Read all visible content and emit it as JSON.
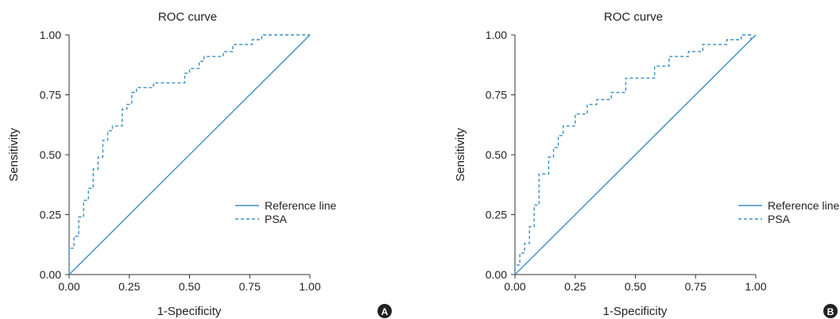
{
  "chart_data": [
    {
      "type": "line",
      "panel_label": "A",
      "title": "ROC curve",
      "xlabel": "1-Specificity",
      "ylabel": "Sensitivity",
      "xlim": [
        0,
        1
      ],
      "ylim": [
        0,
        1
      ],
      "xticks": [
        "0.00",
        "0.25",
        "0.50",
        "0.75",
        "1.00"
      ],
      "yticks": [
        "0.00",
        "0.25",
        "0.50",
        "0.75",
        "1.00"
      ],
      "grid": false,
      "legend_position": "right",
      "series": [
        {
          "name": "Reference line",
          "style": "solid",
          "color": "#3b8fc4",
          "x": [
            0,
            1
          ],
          "y": [
            0,
            1
          ]
        },
        {
          "name": "PSA",
          "style": "dashed",
          "color": "#3b8fc4",
          "x": [
            0,
            0,
            0.02,
            0.02,
            0.04,
            0.04,
            0.06,
            0.06,
            0.08,
            0.08,
            0.1,
            0.1,
            0.12,
            0.12,
            0.14,
            0.14,
            0.16,
            0.16,
            0.18,
            0.18,
            0.22,
            0.22,
            0.24,
            0.24,
            0.26,
            0.26,
            0.28,
            0.28,
            0.35,
            0.35,
            0.48,
            0.48,
            0.5,
            0.5,
            0.54,
            0.54,
            0.56,
            0.56,
            0.64,
            0.64,
            0.68,
            0.68,
            0.76,
            0.76,
            0.8,
            0.8,
            1.0
          ],
          "y": [
            0,
            0.11,
            0.11,
            0.16,
            0.16,
            0.24,
            0.24,
            0.31,
            0.31,
            0.36,
            0.36,
            0.44,
            0.44,
            0.49,
            0.49,
            0.56,
            0.56,
            0.6,
            0.6,
            0.62,
            0.62,
            0.69,
            0.69,
            0.71,
            0.71,
            0.76,
            0.76,
            0.78,
            0.78,
            0.8,
            0.8,
            0.84,
            0.84,
            0.86,
            0.86,
            0.89,
            0.89,
            0.91,
            0.91,
            0.93,
            0.93,
            0.96,
            0.96,
            0.98,
            0.98,
            1.0,
            1.0
          ]
        }
      ]
    },
    {
      "type": "line",
      "panel_label": "B",
      "title": "ROC curve",
      "xlabel": "1-Specificity",
      "ylabel": "Sensitivity",
      "xlim": [
        0,
        1
      ],
      "ylim": [
        0,
        1
      ],
      "xticks": [
        "0.00",
        "0.25",
        "0.50",
        "0.75",
        "1.00"
      ],
      "yticks": [
        "0.00",
        "0.25",
        "0.50",
        "0.75",
        "1.00"
      ],
      "grid": false,
      "legend_position": "right",
      "series": [
        {
          "name": "Reference line",
          "style": "solid",
          "color": "#3b8fc4",
          "x": [
            0,
            1
          ],
          "y": [
            0,
            1
          ]
        },
        {
          "name": "PSA",
          "style": "dashed",
          "color": "#3b8fc4",
          "x": [
            0,
            0,
            0.02,
            0.02,
            0.04,
            0.04,
            0.06,
            0.06,
            0.08,
            0.08,
            0.1,
            0.1,
            0.14,
            0.14,
            0.16,
            0.16,
            0.18,
            0.18,
            0.2,
            0.2,
            0.25,
            0.25,
            0.3,
            0.3,
            0.34,
            0.34,
            0.4,
            0.4,
            0.46,
            0.46,
            0.58,
            0.58,
            0.64,
            0.64,
            0.72,
            0.72,
            0.78,
            0.78,
            0.88,
            0.88,
            0.94,
            0.94,
            0.98,
            0.98,
            1.0
          ],
          "y": [
            0,
            0.04,
            0.04,
            0.09,
            0.09,
            0.13,
            0.13,
            0.2,
            0.2,
            0.29,
            0.29,
            0.42,
            0.42,
            0.49,
            0.49,
            0.53,
            0.53,
            0.58,
            0.58,
            0.62,
            0.62,
            0.67,
            0.67,
            0.71,
            0.71,
            0.73,
            0.73,
            0.76,
            0.76,
            0.82,
            0.82,
            0.87,
            0.87,
            0.91,
            0.91,
            0.93,
            0.93,
            0.96,
            0.96,
            0.98,
            0.98,
            1.0,
            1.0,
            0.98,
            1.0
          ]
        }
      ]
    }
  ]
}
